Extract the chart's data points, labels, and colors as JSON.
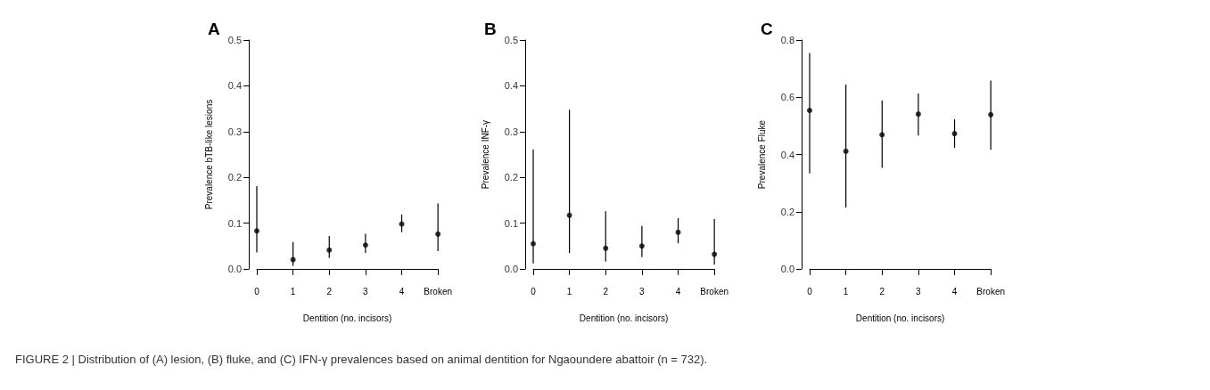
{
  "chart_data": [
    {
      "type": "scatter",
      "title": "A",
      "xlabel": "Dentition (no. incisors)",
      "ylabel": "Prevalence bTB-like lesions",
      "categories": [
        "0",
        "1",
        "2",
        "3",
        "4",
        "Broken"
      ],
      "values": [
        0.083,
        0.02,
        0.041,
        0.052,
        0.098,
        0.076
      ],
      "errors": [
        [
          0.036,
          0.181
        ],
        [
          0.007,
          0.059
        ],
        [
          0.024,
          0.072
        ],
        [
          0.035,
          0.077
        ],
        [
          0.08,
          0.119
        ],
        [
          0.039,
          0.143
        ]
      ],
      "color": "#000000",
      "marker": "circle",
      "ylim": [
        0,
        0.5
      ],
      "yticks": [
        {
          "value": 0,
          "label": "0.0"
        },
        {
          "value": 0.1,
          "label": "0.1"
        },
        {
          "value": 0.2,
          "label": "0.2"
        },
        {
          "value": 0.3,
          "label": "0.3"
        },
        {
          "value": 0.4,
          "label": "0.4"
        },
        {
          "value": 0.5,
          "label": "0.5"
        }
      ]
    },
    {
      "type": "scatter",
      "title": "B",
      "xlabel": "Dentition (no. incisors)",
      "ylabel": "Prevalence INF-γ",
      "categories": [
        "0",
        "1",
        "2",
        "3",
        "4",
        "Broken"
      ],
      "values": [
        0.055,
        0.117,
        0.045,
        0.05,
        0.08,
        0.032
      ],
      "errors": [
        [
          0.012,
          0.261
        ],
        [
          0.035,
          0.348
        ],
        [
          0.016,
          0.126
        ],
        [
          0.026,
          0.094
        ],
        [
          0.056,
          0.111
        ],
        [
          0.009,
          0.109
        ]
      ],
      "color": "#000000",
      "marker": "circle",
      "ylim": [
        0,
        0.5
      ],
      "yticks": [
        {
          "value": 0,
          "label": "0.0"
        },
        {
          "value": 0.1,
          "label": "0.1"
        },
        {
          "value": 0.2,
          "label": "0.2"
        },
        {
          "value": 0.3,
          "label": "0.3"
        },
        {
          "value": 0.4,
          "label": "0.4"
        },
        {
          "value": 0.5,
          "label": "0.5"
        }
      ]
    },
    {
      "type": "scatter",
      "title": "C",
      "xlabel": "Dentition (no. incisors)",
      "ylabel": "Prevalence Fluke",
      "categories": [
        "0",
        "1",
        "2",
        "3",
        "4",
        "Broken"
      ],
      "values": [
        0.554,
        0.411,
        0.469,
        0.541,
        0.473,
        0.539
      ],
      "errors": [
        [
          0.334,
          0.755
        ],
        [
          0.215,
          0.644
        ],
        [
          0.353,
          0.589
        ],
        [
          0.466,
          0.613
        ],
        [
          0.423,
          0.523
        ],
        [
          0.416,
          0.658
        ]
      ],
      "color": "#000000",
      "marker": "circle",
      "ylim": [
        0,
        0.8
      ],
      "yticks": [
        {
          "value": 0,
          "label": "0.0"
        },
        {
          "value": 0.2,
          "label": "0.2"
        },
        {
          "value": 0.4,
          "label": "0.4"
        },
        {
          "value": 0.6,
          "label": "0.6"
        },
        {
          "value": 0.8,
          "label": "0.8"
        }
      ],
      "annotations": [
        "FIGURE 2 | Distribution of (A) lesion, (B) fluke, and (C) IFN-γ prevalences based on animal dentition for Ngaoundere abattoir (n = 732)."
      ]
    }
  ]
}
